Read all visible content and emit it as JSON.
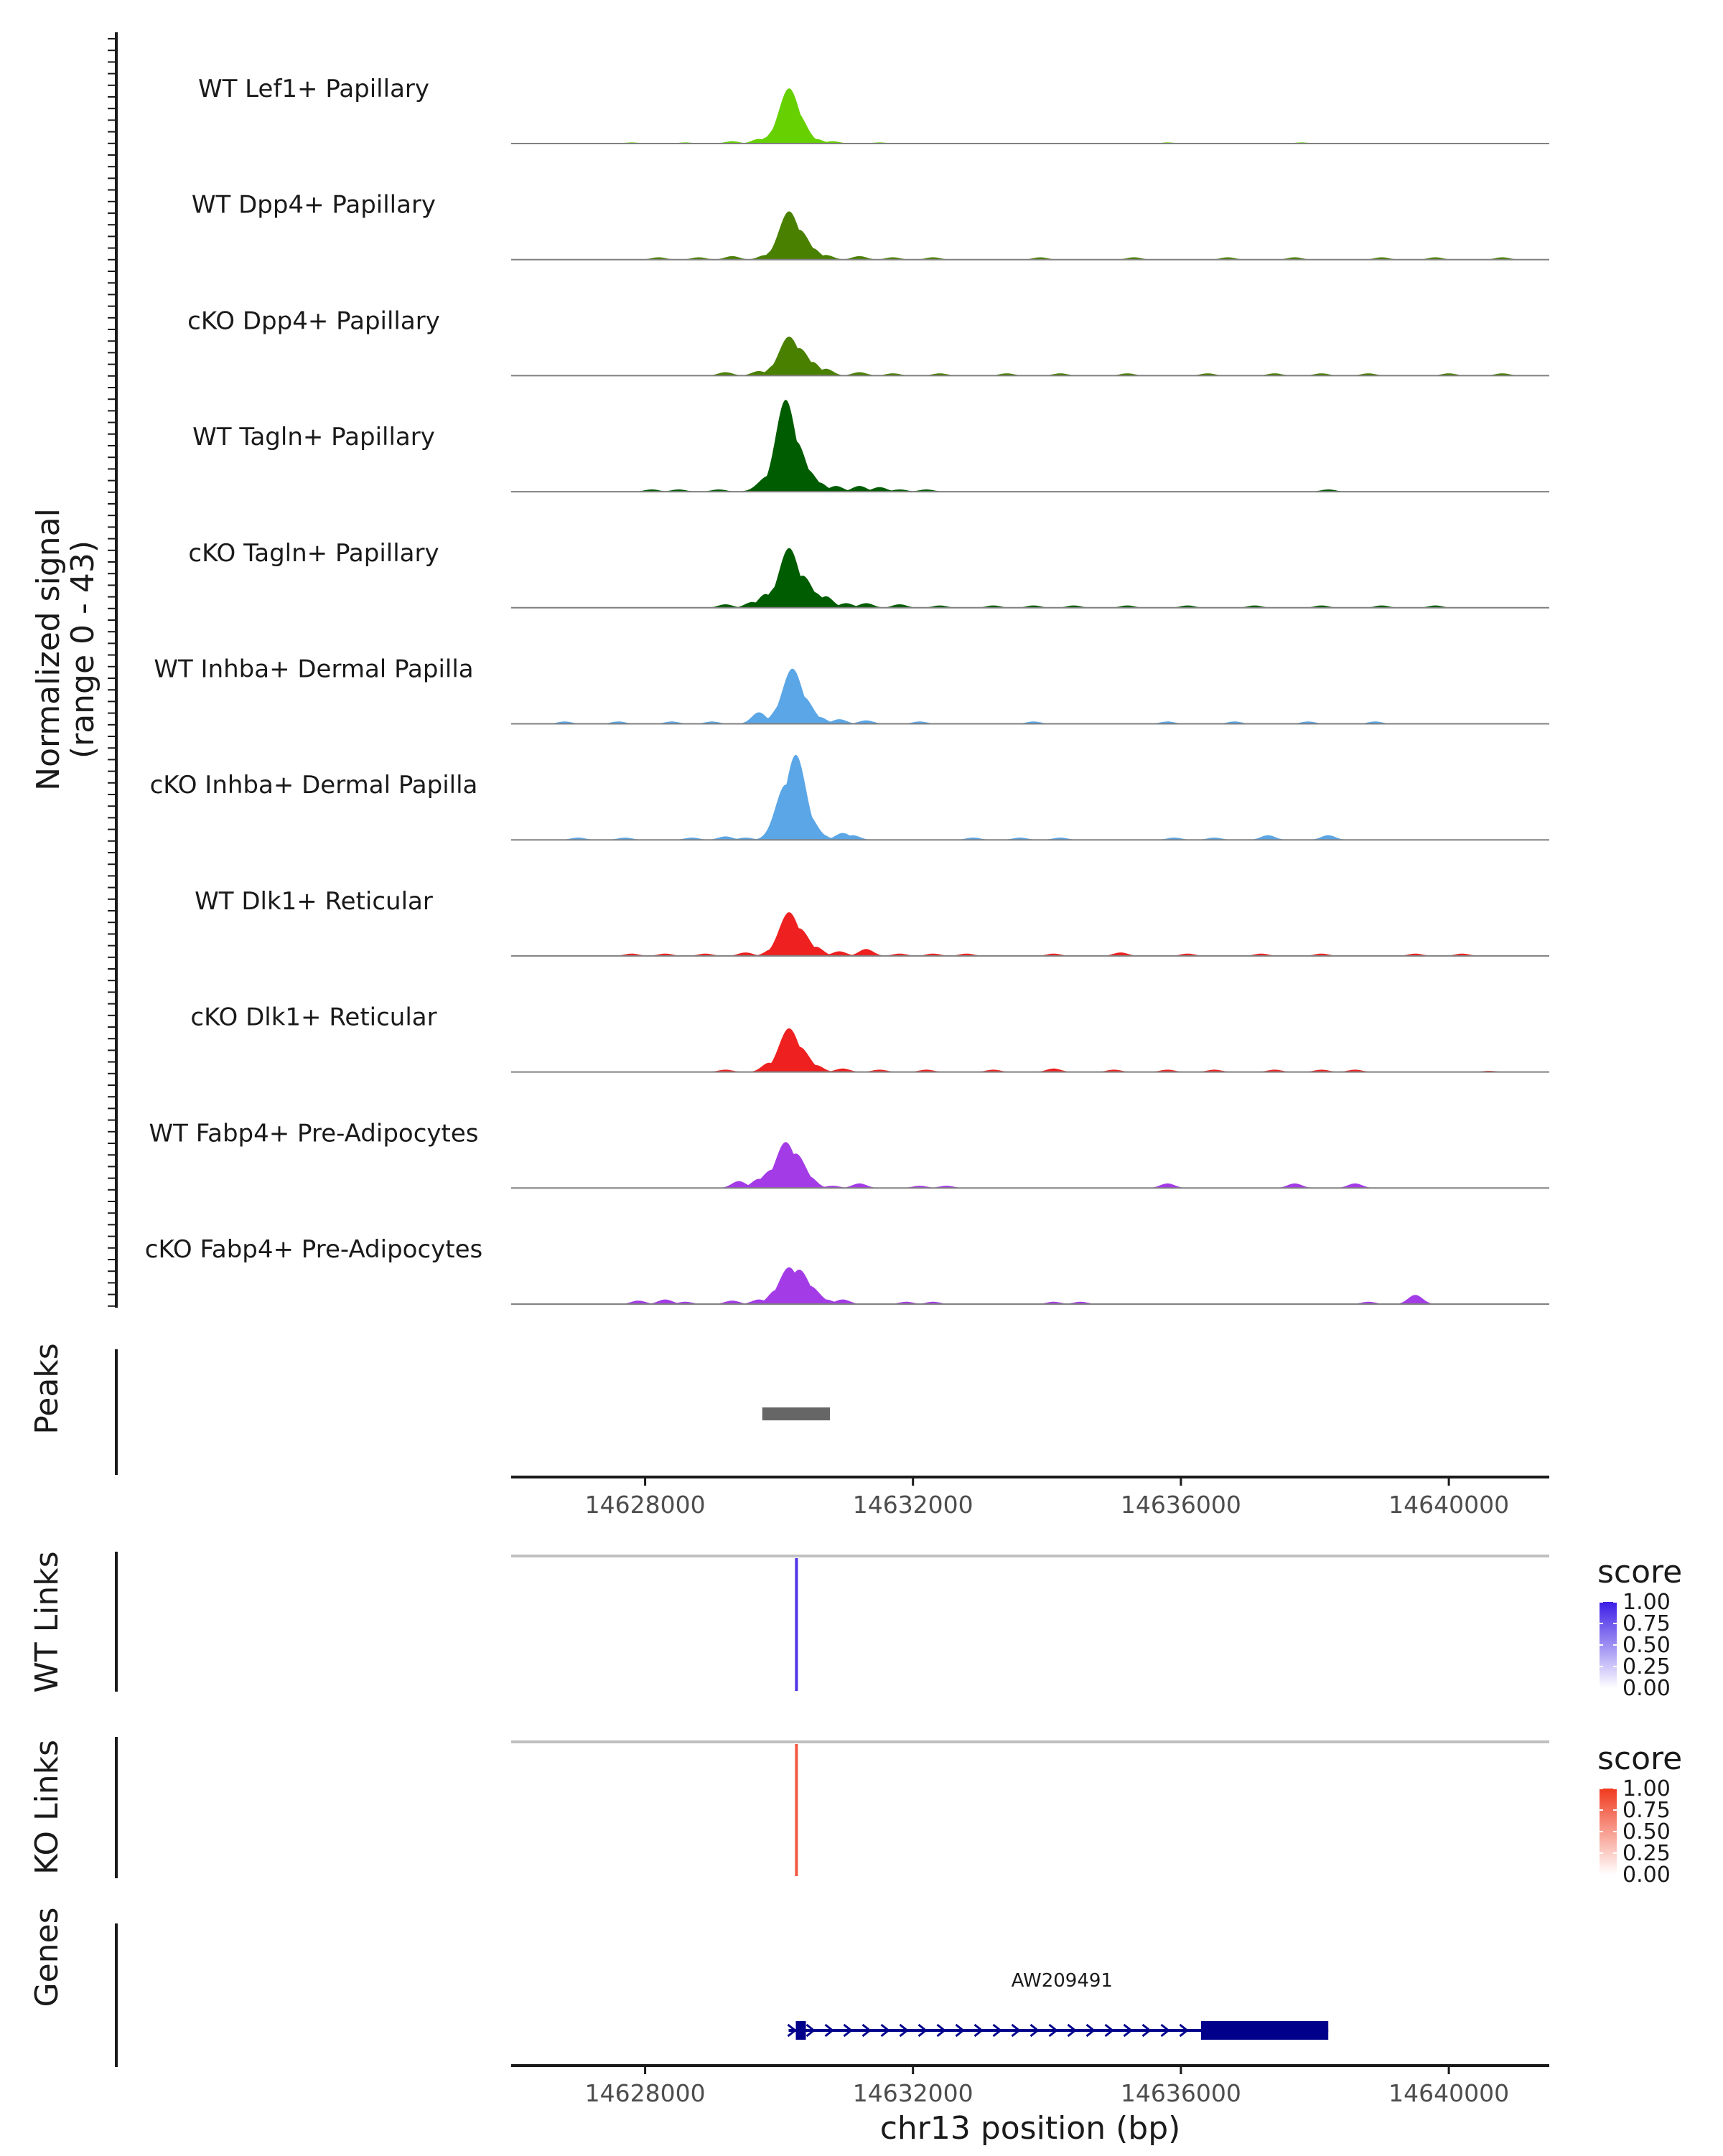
{
  "chart_data": {
    "type": "area",
    "title": "",
    "region": {
      "chromosome": "chr13",
      "start": 14626000,
      "end": 14641500
    },
    "coverage": {
      "ylabel_line1": "Normalized signal",
      "ylabel_line2": "(range 0 - 43)",
      "ylim": [
        0,
        43
      ],
      "tracks": [
        {
          "name": "WT Lef1+ Papillary",
          "color": "#66d000",
          "peaks": [
            [
              14629300,
              1
            ],
            [
              14629700,
              2
            ],
            [
              14629850,
              3
            ],
            [
              14630050,
              10
            ],
            [
              14630150,
              24
            ],
            [
              14630250,
              14
            ],
            [
              14630350,
              5
            ],
            [
              14630550,
              2
            ],
            [
              14630800,
              1
            ],
            [
              14627800,
              0.5
            ],
            [
              14628600,
              0.5
            ],
            [
              14631500,
              0.5
            ],
            [
              14635800,
              0.5
            ],
            [
              14637800,
              0.5
            ]
          ]
        },
        {
          "name": "WT Dpp4+ Papillary",
          "color": "#4a8000",
          "peaks": [
            [
              14628200,
              1
            ],
            [
              14628800,
              1
            ],
            [
              14629300,
              1.5
            ],
            [
              14629800,
              2
            ],
            [
              14629950,
              5
            ],
            [
              14630150,
              21
            ],
            [
              14630300,
              13
            ],
            [
              14630500,
              5
            ],
            [
              14630700,
              2
            ],
            [
              14631200,
              1.5
            ],
            [
              14631700,
              1
            ],
            [
              14632300,
              1
            ],
            [
              14633900,
              1
            ],
            [
              14635300,
              1
            ],
            [
              14636700,
              1
            ],
            [
              14637700,
              1
            ],
            [
              14639000,
              1
            ],
            [
              14639800,
              1
            ],
            [
              14640800,
              1
            ]
          ]
        },
        {
          "name": "cKO Dpp4+ Papillary",
          "color": "#4a8000",
          "peaks": [
            [
              14629200,
              1.5
            ],
            [
              14629700,
              2
            ],
            [
              14629950,
              5
            ],
            [
              14630150,
              17
            ],
            [
              14630300,
              12
            ],
            [
              14630500,
              6
            ],
            [
              14630700,
              3
            ],
            [
              14631200,
              1.5
            ],
            [
              14631700,
              1
            ],
            [
              14632400,
              1
            ],
            [
              14633400,
              1
            ],
            [
              14634200,
              1
            ],
            [
              14635200,
              1
            ],
            [
              14636400,
              1
            ],
            [
              14637400,
              1
            ],
            [
              14638100,
              1
            ],
            [
              14638800,
              1
            ],
            [
              14640000,
              1
            ],
            [
              14640800,
              1
            ]
          ]
        },
        {
          "name": "WT Tagln+ Papillary",
          "color": "#005c00",
          "peaks": [
            [
              14628100,
              1
            ],
            [
              14628500,
              1
            ],
            [
              14629100,
              1
            ],
            [
              14629700,
              2
            ],
            [
              14629850,
              7
            ],
            [
              14630100,
              40
            ],
            [
              14630250,
              22
            ],
            [
              14630400,
              10
            ],
            [
              14630600,
              4
            ],
            [
              14630850,
              2.5
            ],
            [
              14631200,
              2.5
            ],
            [
              14631500,
              2
            ],
            [
              14631800,
              1
            ],
            [
              14632200,
              1
            ],
            [
              14638200,
              1
            ]
          ]
        },
        {
          "name": "cKO Tagln+ Papillary",
          "color": "#005c00",
          "peaks": [
            [
              14629200,
              1.5
            ],
            [
              14629600,
              2.5
            ],
            [
              14629800,
              6
            ],
            [
              14630000,
              10
            ],
            [
              14630150,
              26
            ],
            [
              14630350,
              14
            ],
            [
              14630500,
              7
            ],
            [
              14630700,
              5
            ],
            [
              14631000,
              2
            ],
            [
              14631300,
              2
            ],
            [
              14631800,
              1.5
            ],
            [
              14632400,
              1
            ],
            [
              14633200,
              1
            ],
            [
              14633800,
              1
            ],
            [
              14634400,
              1
            ],
            [
              14635200,
              1
            ],
            [
              14636100,
              1
            ],
            [
              14637100,
              1
            ],
            [
              14638100,
              1
            ],
            [
              14639000,
              1
            ],
            [
              14639800,
              1
            ]
          ]
        },
        {
          "name": "WT Inhba+ Dermal Papilla",
          "color": "#5aa6e6",
          "peaks": [
            [
              14626800,
              1
            ],
            [
              14627600,
              1
            ],
            [
              14628400,
              1
            ],
            [
              14629000,
              1
            ],
            [
              14629700,
              5
            ],
            [
              14629900,
              3
            ],
            [
              14630100,
              11
            ],
            [
              14630200,
              24
            ],
            [
              14630350,
              12
            ],
            [
              14630600,
              3
            ],
            [
              14630900,
              2
            ],
            [
              14631300,
              1.5
            ],
            [
              14632100,
              1
            ],
            [
              14633800,
              1
            ],
            [
              14635800,
              1
            ],
            [
              14636800,
              1
            ],
            [
              14637900,
              1
            ],
            [
              14638900,
              1
            ]
          ]
        },
        {
          "name": "cKO Inhba+ Dermal Papilla",
          "color": "#5aa6e6",
          "peaks": [
            [
              14627000,
              1
            ],
            [
              14627700,
              1
            ],
            [
              14628700,
              1
            ],
            [
              14629200,
              1.5
            ],
            [
              14629500,
              1
            ],
            [
              14630100,
              24
            ],
            [
              14630250,
              37
            ],
            [
              14630400,
              12
            ],
            [
              14630600,
              3
            ],
            [
              14630950,
              3
            ],
            [
              14631100,
              2
            ],
            [
              14632900,
              1
            ],
            [
              14633600,
              1
            ],
            [
              14634200,
              1
            ],
            [
              14635900,
              1
            ],
            [
              14636500,
              1
            ],
            [
              14637300,
              2
            ],
            [
              14638200,
              2
            ]
          ]
        },
        {
          "name": "WT Dlk1+ Reticular",
          "color": "#ee2020",
          "peaks": [
            [
              14627800,
              1
            ],
            [
              14628300,
              1
            ],
            [
              14628900,
              1
            ],
            [
              14629500,
              1.5
            ],
            [
              14629900,
              3
            ],
            [
              14630150,
              19
            ],
            [
              14630300,
              12
            ],
            [
              14630550,
              4
            ],
            [
              14630900,
              2
            ],
            [
              14631300,
              3
            ],
            [
              14631800,
              1
            ],
            [
              14632300,
              1
            ],
            [
              14632800,
              1
            ],
            [
              14634100,
              1
            ],
            [
              14635100,
              1.5
            ],
            [
              14636100,
              1
            ],
            [
              14637200,
              1
            ],
            [
              14638100,
              1
            ],
            [
              14639500,
              1
            ],
            [
              14640200,
              1
            ]
          ]
        },
        {
          "name": "cKO Dlk1+ Reticular",
          "color": "#ee2020",
          "peaks": [
            [
              14629200,
              1
            ],
            [
              14629850,
              4
            ],
            [
              14630150,
              19
            ],
            [
              14630300,
              11
            ],
            [
              14630550,
              3
            ],
            [
              14630950,
              1.5
            ],
            [
              14631500,
              1
            ],
            [
              14632200,
              1
            ],
            [
              14633200,
              1
            ],
            [
              14634100,
              1.5
            ],
            [
              14635000,
              1
            ],
            [
              14635800,
              1
            ],
            [
              14636500,
              1
            ],
            [
              14637400,
              1
            ],
            [
              14638100,
              1
            ],
            [
              14638600,
              1
            ],
            [
              14640600,
              0.5
            ]
          ]
        },
        {
          "name": "WT Fabp4+ Pre-Adipocytes",
          "color": "#a33be6",
          "peaks": [
            [
              14629400,
              3
            ],
            [
              14629700,
              4
            ],
            [
              14629900,
              8
            ],
            [
              14630100,
              20
            ],
            [
              14630250,
              15
            ],
            [
              14630450,
              5
            ],
            [
              14630800,
              1
            ],
            [
              14631200,
              2
            ],
            [
              14632100,
              1
            ],
            [
              14632500,
              1
            ],
            [
              14635800,
              2
            ],
            [
              14637700,
              2
            ],
            [
              14638600,
              2
            ]
          ]
        },
        {
          "name": "cKO Fabp4+ Pre-Adipocytes",
          "color": "#a33be6",
          "peaks": [
            [
              14627900,
              1.5
            ],
            [
              14628300,
              2
            ],
            [
              14628600,
              1
            ],
            [
              14629300,
              1.5
            ],
            [
              14629700,
              2
            ],
            [
              14629950,
              6
            ],
            [
              14630150,
              16
            ],
            [
              14630300,
              15
            ],
            [
              14630450,
              8
            ],
            [
              14630700,
              2
            ],
            [
              14630950,
              2
            ],
            [
              14631900,
              1
            ],
            [
              14632300,
              1
            ],
            [
              14634100,
              1
            ],
            [
              14634500,
              1
            ],
            [
              14638800,
              1
            ],
            [
              14639500,
              4
            ]
          ]
        }
      ]
    },
    "peaks_track": {
      "label": "Peaks",
      "regions": [
        [
          14629750,
          14630760
        ]
      ]
    },
    "x_axis_top": {
      "ticks": [
        14628000,
        14632000,
        14636000,
        14640000
      ]
    },
    "links_tracks": [
      {
        "label": "WT Links",
        "color_high": "#3c1ee6",
        "color_low": "#ffffff",
        "legend_title": "score",
        "legend_ticks": [
          "1.00",
          "0.75",
          "0.50",
          "0.25",
          "0.00"
        ],
        "links": [
          {
            "position": 14630260,
            "score": 0.9
          }
        ]
      },
      {
        "label": "KO Links",
        "color_high": "#f03a1e",
        "color_low": "#ffffff",
        "legend_title": "score",
        "legend_ticks": [
          "1.00",
          "0.75",
          "0.50",
          "0.25",
          "0.00"
        ],
        "links": [
          {
            "position": 14630260,
            "score": 0.85
          }
        ]
      }
    ],
    "genes_track": {
      "label": "Genes",
      "gene_name": "AW209491",
      "gene_start": 14630250,
      "gene_end": 14638200,
      "exons": [
        [
          14630250,
          14630400
        ],
        [
          14636300,
          14638200
        ]
      ],
      "color": "#00008b"
    },
    "x_axis_bottom": {
      "ticks": [
        14628000,
        14632000,
        14636000,
        14640000
      ],
      "xlabel": "chr13 position (bp)"
    }
  }
}
